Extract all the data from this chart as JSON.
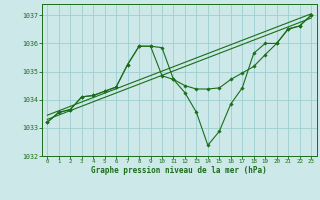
{
  "background_color": "#cce8e8",
  "grid_color": "#9ecece",
  "line_color": "#1a6e1a",
  "text_color": "#1a6e1a",
  "xlabel": "Graphe pression niveau de la mer (hPa)",
  "ylim": [
    1032,
    1037.4
  ],
  "xlim": [
    -0.5,
    23.5
  ],
  "yticks": [
    1032,
    1033,
    1034,
    1035,
    1036,
    1037
  ],
  "xticks": [
    0,
    1,
    2,
    3,
    4,
    5,
    6,
    7,
    8,
    9,
    10,
    11,
    12,
    13,
    14,
    15,
    16,
    17,
    18,
    19,
    20,
    21,
    22,
    23
  ],
  "series1_x": [
    0,
    1,
    2,
    3,
    4,
    5,
    6,
    7,
    8,
    9,
    10,
    11,
    12,
    13,
    14,
    15,
    16,
    17,
    18,
    19,
    20,
    21,
    22,
    23
  ],
  "series1_y": [
    1033.2,
    1033.55,
    1033.65,
    1034.1,
    1034.15,
    1034.3,
    1034.45,
    1035.25,
    1035.9,
    1035.9,
    1034.85,
    1034.72,
    1034.5,
    1034.38,
    1034.38,
    1034.42,
    1034.72,
    1034.95,
    1035.18,
    1035.6,
    1036.0,
    1036.5,
    1036.62,
    1037.0
  ],
  "series2_x": [
    0,
    1,
    2,
    3,
    4,
    5,
    6,
    7,
    8,
    9,
    10,
    11,
    12,
    13,
    14,
    15,
    16,
    17,
    18,
    19,
    20,
    21,
    22,
    23
  ],
  "series2_y": [
    1033.2,
    1033.55,
    1033.65,
    1034.1,
    1034.15,
    1034.3,
    1034.45,
    1035.25,
    1035.9,
    1035.9,
    1035.85,
    1034.72,
    1034.25,
    1033.55,
    1032.38,
    1032.88,
    1033.85,
    1034.42,
    1035.65,
    1036.0,
    1036.0,
    1036.52,
    1036.62,
    1037.0
  ],
  "trend1_x": [
    0,
    23
  ],
  "trend1_y": [
    1033.3,
    1036.9
  ],
  "trend2_x": [
    0,
    23
  ],
  "trend2_y": [
    1033.45,
    1037.05
  ]
}
